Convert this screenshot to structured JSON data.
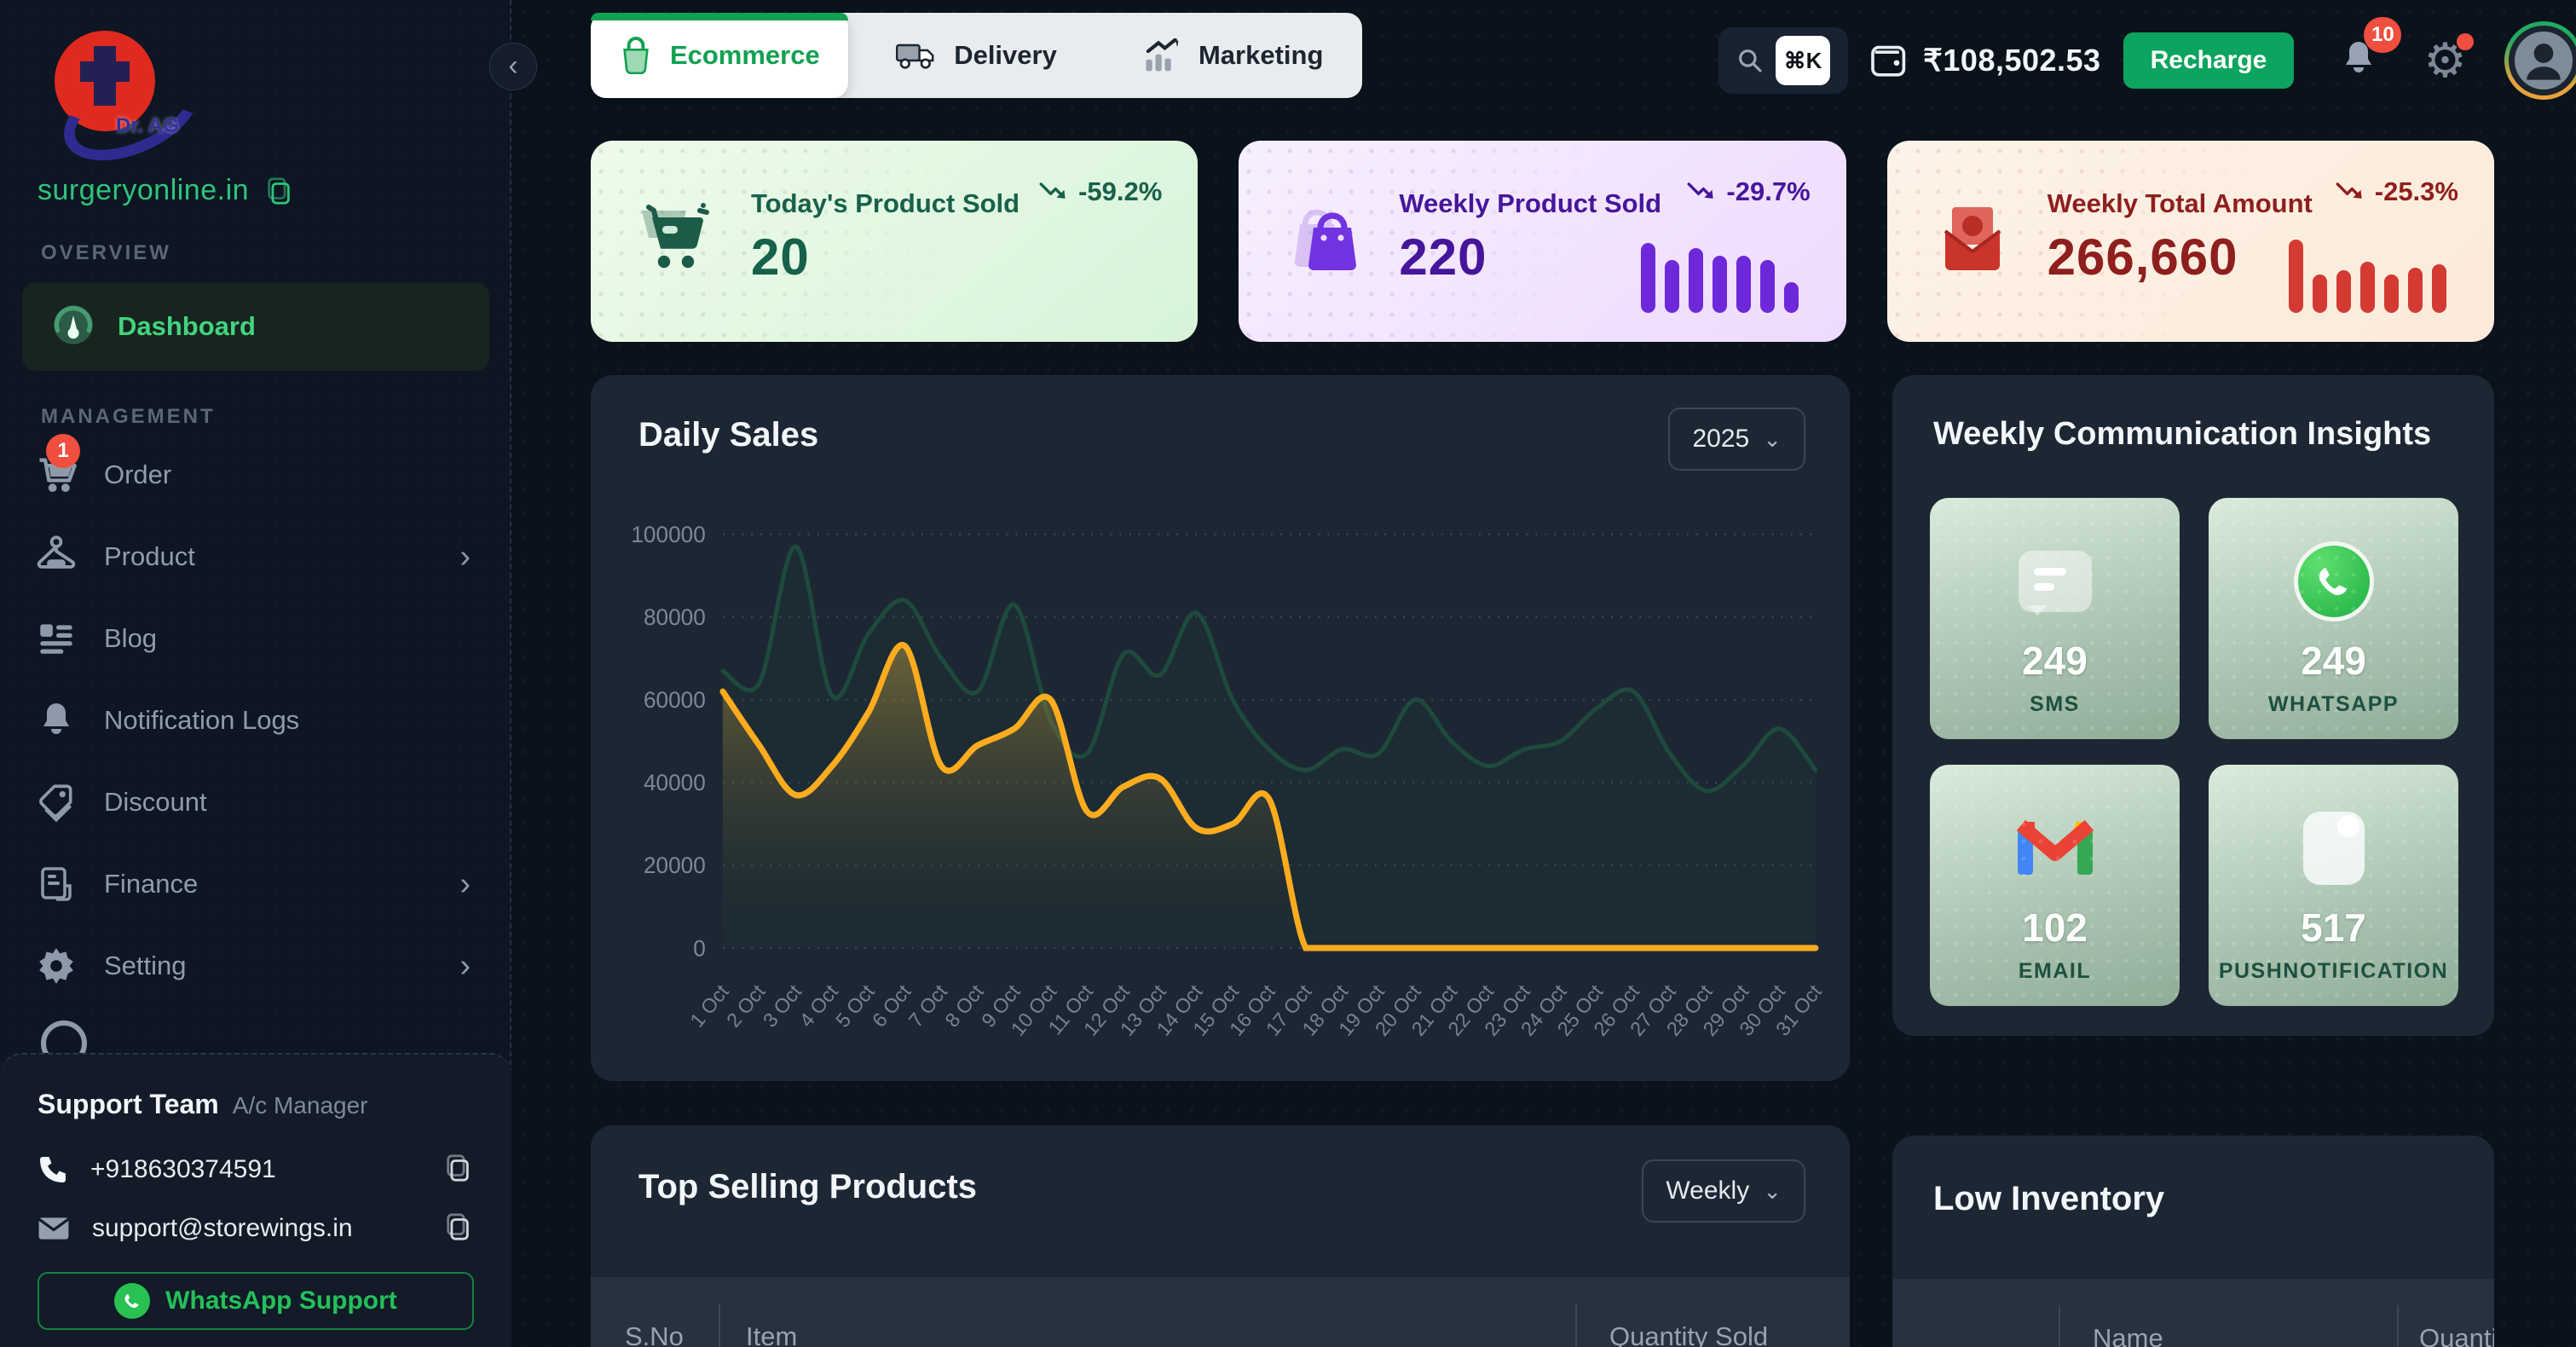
{
  "sidebar": {
    "logo": {
      "text": "Dr. AG"
    },
    "domain": "surgeryonline.in",
    "sections": {
      "overview": "OVERVIEW",
      "management": "MANAGEMENT"
    },
    "dashboard": "Dashboard",
    "nav": [
      {
        "label": "Order",
        "badge": "1"
      },
      {
        "label": "Product"
      },
      {
        "label": "Blog"
      },
      {
        "label": "Notification Logs"
      },
      {
        "label": "Discount"
      },
      {
        "label": "Finance"
      },
      {
        "label": "Setting"
      }
    ],
    "support": {
      "title": "Support Team",
      "subtitle": "A/c Manager",
      "phone": "+918630374591",
      "email": "support@storewings.in",
      "whatsapp": "WhatsApp Support"
    }
  },
  "topbar": {
    "tabs": [
      {
        "label": "Ecommerce",
        "active": true
      },
      {
        "label": "Delivery",
        "active": false
      },
      {
        "label": "Marketing",
        "active": false
      }
    ],
    "search_shortcut": "⌘K",
    "balance": "₹108,502.53",
    "recharge": "Recharge",
    "notification_count": "10"
  },
  "stats": [
    {
      "title": "Today's Product Sold",
      "value": "20",
      "trend": "-59.2%"
    },
    {
      "title": "Weekly Product Sold",
      "value": "220",
      "trend": "-29.7%",
      "bars": [
        0.95,
        0.72,
        0.88,
        0.78,
        0.78,
        0.72,
        0.42
      ]
    },
    {
      "title": "Weekly Total Amount",
      "value": "266,660",
      "trend": "-25.3%",
      "bars": [
        1.0,
        0.52,
        0.58,
        0.7,
        0.52,
        0.62,
        0.66
      ]
    }
  ],
  "daily_sales": {
    "title": "Daily Sales",
    "year": "2025"
  },
  "chart_data": {
    "type": "area",
    "title": "Daily Sales",
    "xlabel": "",
    "ylabel": "",
    "ylim": [
      0,
      100000
    ],
    "y_ticks": [
      0,
      20000,
      40000,
      60000,
      80000,
      100000
    ],
    "grid": "horizontal-dashed",
    "legend_position": "none",
    "x_labels": [
      "1 Oct",
      "2 Oct",
      "3 Oct",
      "4 Oct",
      "5 Oct",
      "6 Oct",
      "7 Oct",
      "8 Oct",
      "9 Oct",
      "10 Oct",
      "11 Oct",
      "12 Oct",
      "13 Oct",
      "14 Oct",
      "15 Oct",
      "16 Oct",
      "17 Oct",
      "18 Oct",
      "19 Oct",
      "20 Oct",
      "21 Oct",
      "22 Oct",
      "23 Oct",
      "24 Oct",
      "25 Oct",
      "26 Oct",
      "27 Oct",
      "28 Oct",
      "29 Oct",
      "30 Oct",
      "31 Oct"
    ],
    "series": [
      {
        "name": "comparison",
        "color": "#1e4a3b",
        "fill": "rgba(30,74,59,0.14)",
        "values": [
          67000,
          64000,
          97000,
          61000,
          76000,
          84000,
          70000,
          62000,
          83000,
          55000,
          47000,
          71000,
          66000,
          81000,
          60000,
          48000,
          43000,
          48000,
          47000,
          60000,
          50000,
          44000,
          48000,
          50000,
          58000,
          62000,
          47000,
          38000,
          44000,
          53000,
          43000
        ]
      },
      {
        "name": "current",
        "color": "#fbab1e",
        "fill": "gold-gradient",
        "values": [
          62000,
          49000,
          37000,
          44000,
          57000,
          73000,
          44000,
          49000,
          53000,
          60000,
          33000,
          39000,
          41000,
          29000,
          30000,
          36000,
          0,
          0,
          0,
          0,
          0,
          0,
          0,
          0,
          0,
          0,
          0,
          0,
          0,
          0,
          0
        ]
      }
    ]
  },
  "communication": {
    "title": "Weekly Communication Insights",
    "cards": [
      {
        "value": "249",
        "label": "SMS"
      },
      {
        "value": "249",
        "label": "WHATSAPP"
      },
      {
        "value": "102",
        "label": "EMAIL"
      },
      {
        "value": "517",
        "label": "PUSHNOTIFICATION"
      }
    ]
  },
  "top_selling": {
    "title": "Top Selling Products",
    "filter": "Weekly",
    "columns": [
      "S.No",
      "Item",
      "Quantity Sold"
    ]
  },
  "low_inventory": {
    "title": "Low Inventory",
    "columns": [
      "Name",
      "Quantity"
    ]
  },
  "colors": {
    "accent_green": "#12a150",
    "badge_red": "#f04e3e",
    "orange_line": "#fbab1e",
    "green_line": "#1e4a3b",
    "recharge_green": "#0ca45e"
  }
}
